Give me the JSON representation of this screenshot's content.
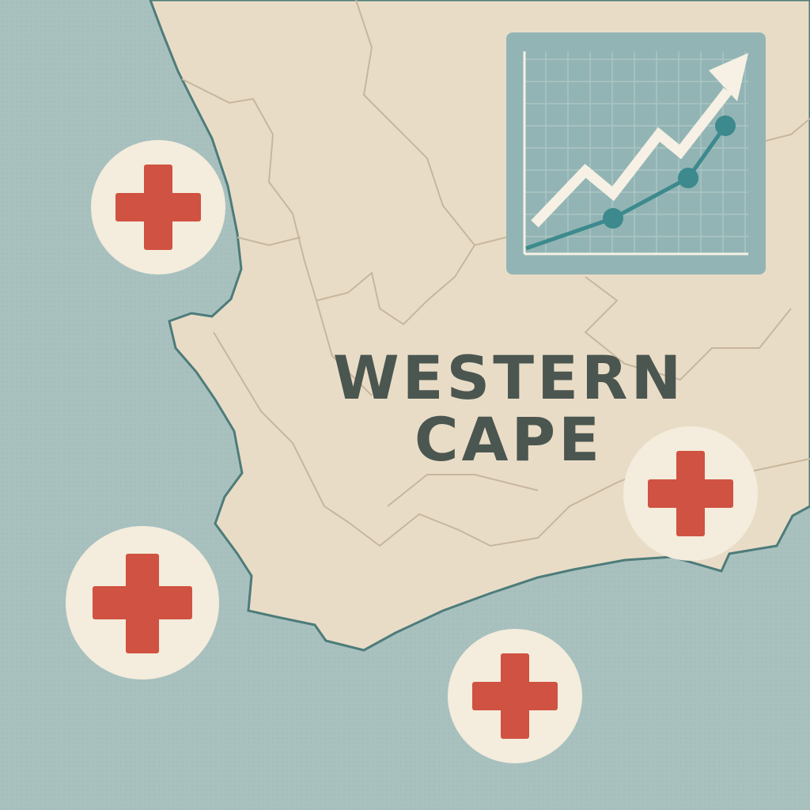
{
  "map": {
    "region_name_line1": "WESTERN",
    "region_name_line2": "CAPE",
    "markers": [
      {
        "icon": "medical-cross-icon"
      },
      {
        "icon": "medical-cross-icon"
      },
      {
        "icon": "medical-cross-icon"
      },
      {
        "icon": "medical-cross-icon"
      }
    ],
    "inset": {
      "icon": "growth-chart-icon",
      "trend": "upward"
    }
  },
  "colors": {
    "sea": "#a8c1bf",
    "land": "#e9dcc7",
    "coastline": "#4d7c7a",
    "border": "#c9b89e",
    "label": "#4b5650",
    "cross": "#d05242",
    "marker_bg": "#f4ecdc",
    "chart_bg": "#93b4b4",
    "chart_line": "#3c8a8d",
    "chart_arrow": "#f6f1e4"
  }
}
